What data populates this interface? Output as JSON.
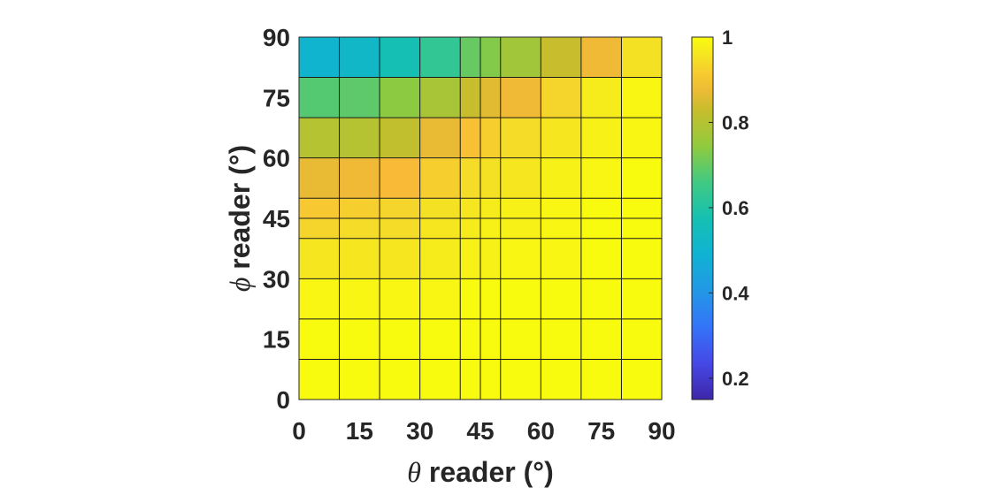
{
  "chart_data": {
    "type": "heatmap",
    "title": "",
    "xlabel": {
      "symbol": "θ",
      "text": " reader (°)"
    },
    "ylabel": {
      "symbol": "ϕ",
      "text": " reader (°)"
    },
    "x_edges": [
      0,
      10,
      20,
      30,
      40,
      45,
      50,
      60,
      70,
      80,
      90
    ],
    "y_edges": [
      0,
      10,
      20,
      30,
      40,
      45,
      50,
      60,
      70,
      80,
      90
    ],
    "xticks": [
      0,
      15,
      30,
      45,
      60,
      75,
      90
    ],
    "yticks": [
      0,
      15,
      30,
      45,
      60,
      75,
      90
    ],
    "xlim": [
      0,
      90
    ],
    "ylim": [
      0,
      90
    ],
    "colormap": "parula",
    "colorbar": {
      "clim": [
        0.15,
        1.0
      ],
      "ticks": [
        0.2,
        0.4,
        0.6,
        0.8,
        1
      ],
      "tick_labels": [
        "0.2",
        "0.4",
        "0.6",
        "0.8",
        "1"
      ]
    },
    "values": [
      [
        1.0,
        1.0,
        1.0,
        1.0,
        1.0,
        1.0,
        1.0,
        1.0,
        1.0,
        1.0
      ],
      [
        1.0,
        1.0,
        1.0,
        1.0,
        1.0,
        1.0,
        1.0,
        1.0,
        1.0,
        1.0
      ],
      [
        0.99,
        0.99,
        0.99,
        0.99,
        1.0,
        1.0,
        1.0,
        1.0,
        1.0,
        1.0
      ],
      [
        0.96,
        0.96,
        0.96,
        0.97,
        0.98,
        0.98,
        0.99,
        0.99,
        1.0,
        1.0
      ],
      [
        0.93,
        0.94,
        0.94,
        0.96,
        0.97,
        0.98,
        0.98,
        0.99,
        1.0,
        1.0
      ],
      [
        0.91,
        0.92,
        0.93,
        0.95,
        0.96,
        0.97,
        0.98,
        0.99,
        1.0,
        1.0
      ],
      [
        0.87,
        0.88,
        0.89,
        0.92,
        0.94,
        0.95,
        0.96,
        0.98,
        0.99,
        1.0
      ],
      [
        0.8,
        0.8,
        0.82,
        0.87,
        0.9,
        0.92,
        0.94,
        0.96,
        0.98,
        0.99
      ],
      [
        0.68,
        0.69,
        0.74,
        0.78,
        0.83,
        0.86,
        0.88,
        0.93,
        0.97,
        0.99
      ],
      [
        0.5,
        0.52,
        0.57,
        0.63,
        0.7,
        0.73,
        0.77,
        0.83,
        0.88,
        0.95
      ]
    ]
  }
}
